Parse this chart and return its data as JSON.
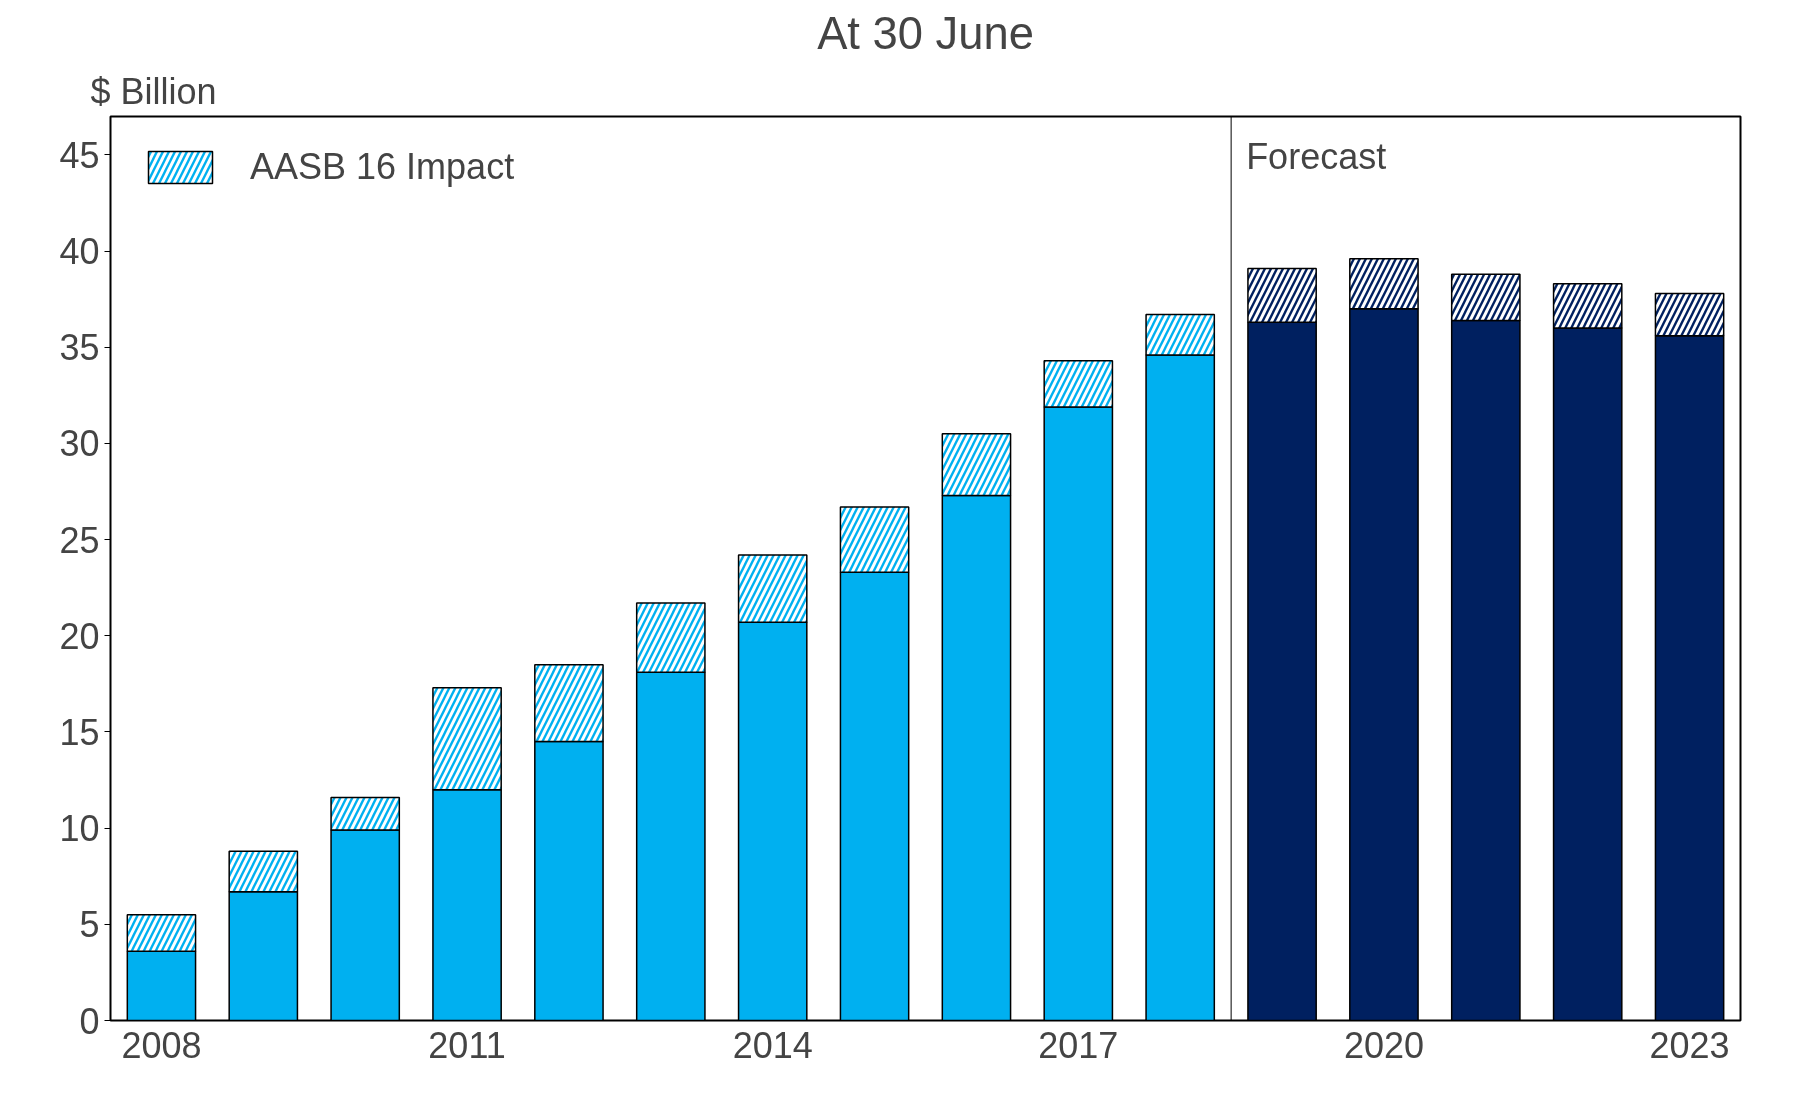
{
  "chart_data": {
    "type": "bar",
    "title": "At 30 June",
    "ylabel": "$ Billion",
    "stacked": true,
    "x": [
      2008,
      2009,
      2010,
      2011,
      2012,
      2013,
      2014,
      2015,
      2016,
      2017,
      2018,
      2019,
      2020,
      2021,
      2022,
      2023
    ],
    "xlim": [
      2007.5,
      2023.5
    ],
    "xticks": [
      2008,
      2011,
      2014,
      2017,
      2020,
      2023
    ],
    "ylim": [
      0,
      47
    ],
    "yticks": [
      0,
      5,
      10,
      15,
      20,
      25,
      30,
      35,
      40,
      45
    ],
    "series": [
      {
        "colors": [
          "#00b0f0",
          "#00b0f0",
          "#00b0f0",
          "#00b0f0",
          "#00b0f0",
          "#00b0f0",
          "#00b0f0",
          "#00b0f0",
          "#00b0f0",
          "#00b0f0",
          "#00b0f0",
          "#002060",
          "#002060",
          "#002060",
          "#002060",
          "#002060"
        ],
        "values": [
          3.6,
          6.7,
          9.9,
          12.0,
          14.5,
          18.1,
          20.7,
          23.3,
          27.3,
          31.9,
          34.6,
          36.3,
          37.0,
          36.4,
          36.0,
          35.6
        ]
      },
      {
        "name": "AASB 16 Impact",
        "colors": [
          "#00b0f0",
          "#00b0f0",
          "#00b0f0",
          "#00b0f0",
          "#00b0f0",
          "#00b0f0",
          "#00b0f0",
          "#00b0f0",
          "#00b0f0",
          "#00b0f0",
          "#00b0f0",
          "#002060",
          "#002060",
          "#002060",
          "#002060",
          "#002060"
        ],
        "values": [
          1.9,
          2.1,
          1.7,
          5.3,
          4.0,
          3.6,
          3.5,
          3.4,
          3.2,
          2.4,
          2.1,
          2.8,
          2.6,
          2.4,
          2.3,
          2.2
        ]
      }
    ],
    "ref_lines": [
      {
        "axis": "x",
        "value": 2018.5,
        "label": "Forecast"
      }
    ],
    "legend": "top left",
    "grid": false
  }
}
